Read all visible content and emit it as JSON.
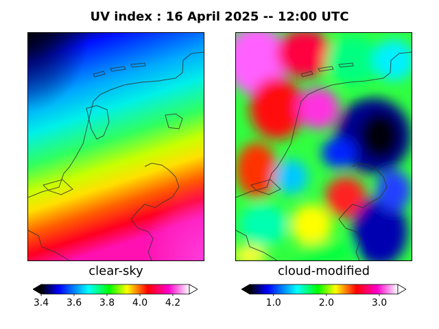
{
  "title": "UV index :  16 April 2025  --  12:00 UTC",
  "panels": {
    "clear_sky": {
      "label": "clear-sky",
      "colorbar_ticks": [
        "3.4",
        "3.6",
        "3.8",
        "4.0",
        "4.2"
      ],
      "tick_values": [
        3.4,
        3.6,
        3.8,
        4.0,
        4.2
      ],
      "range": [
        3.4,
        4.3
      ],
      "extend": "both"
    },
    "cloud_modified": {
      "label": "cloud-modified",
      "colorbar_ticks": [
        "1.0",
        "2.0",
        "3.0"
      ],
      "tick_values": [
        1.0,
        2.0,
        3.0
      ],
      "range": [
        0.55,
        3.35
      ],
      "extend": "both"
    }
  },
  "colormap": [
    "#000000",
    "#0000ff",
    "#00ffff",
    "#00ff00",
    "#ffff00",
    "#ff0000",
    "#ff00cc",
    "#ffffff"
  ],
  "map_region": "Netherlands",
  "coastline_color": "#333333"
}
